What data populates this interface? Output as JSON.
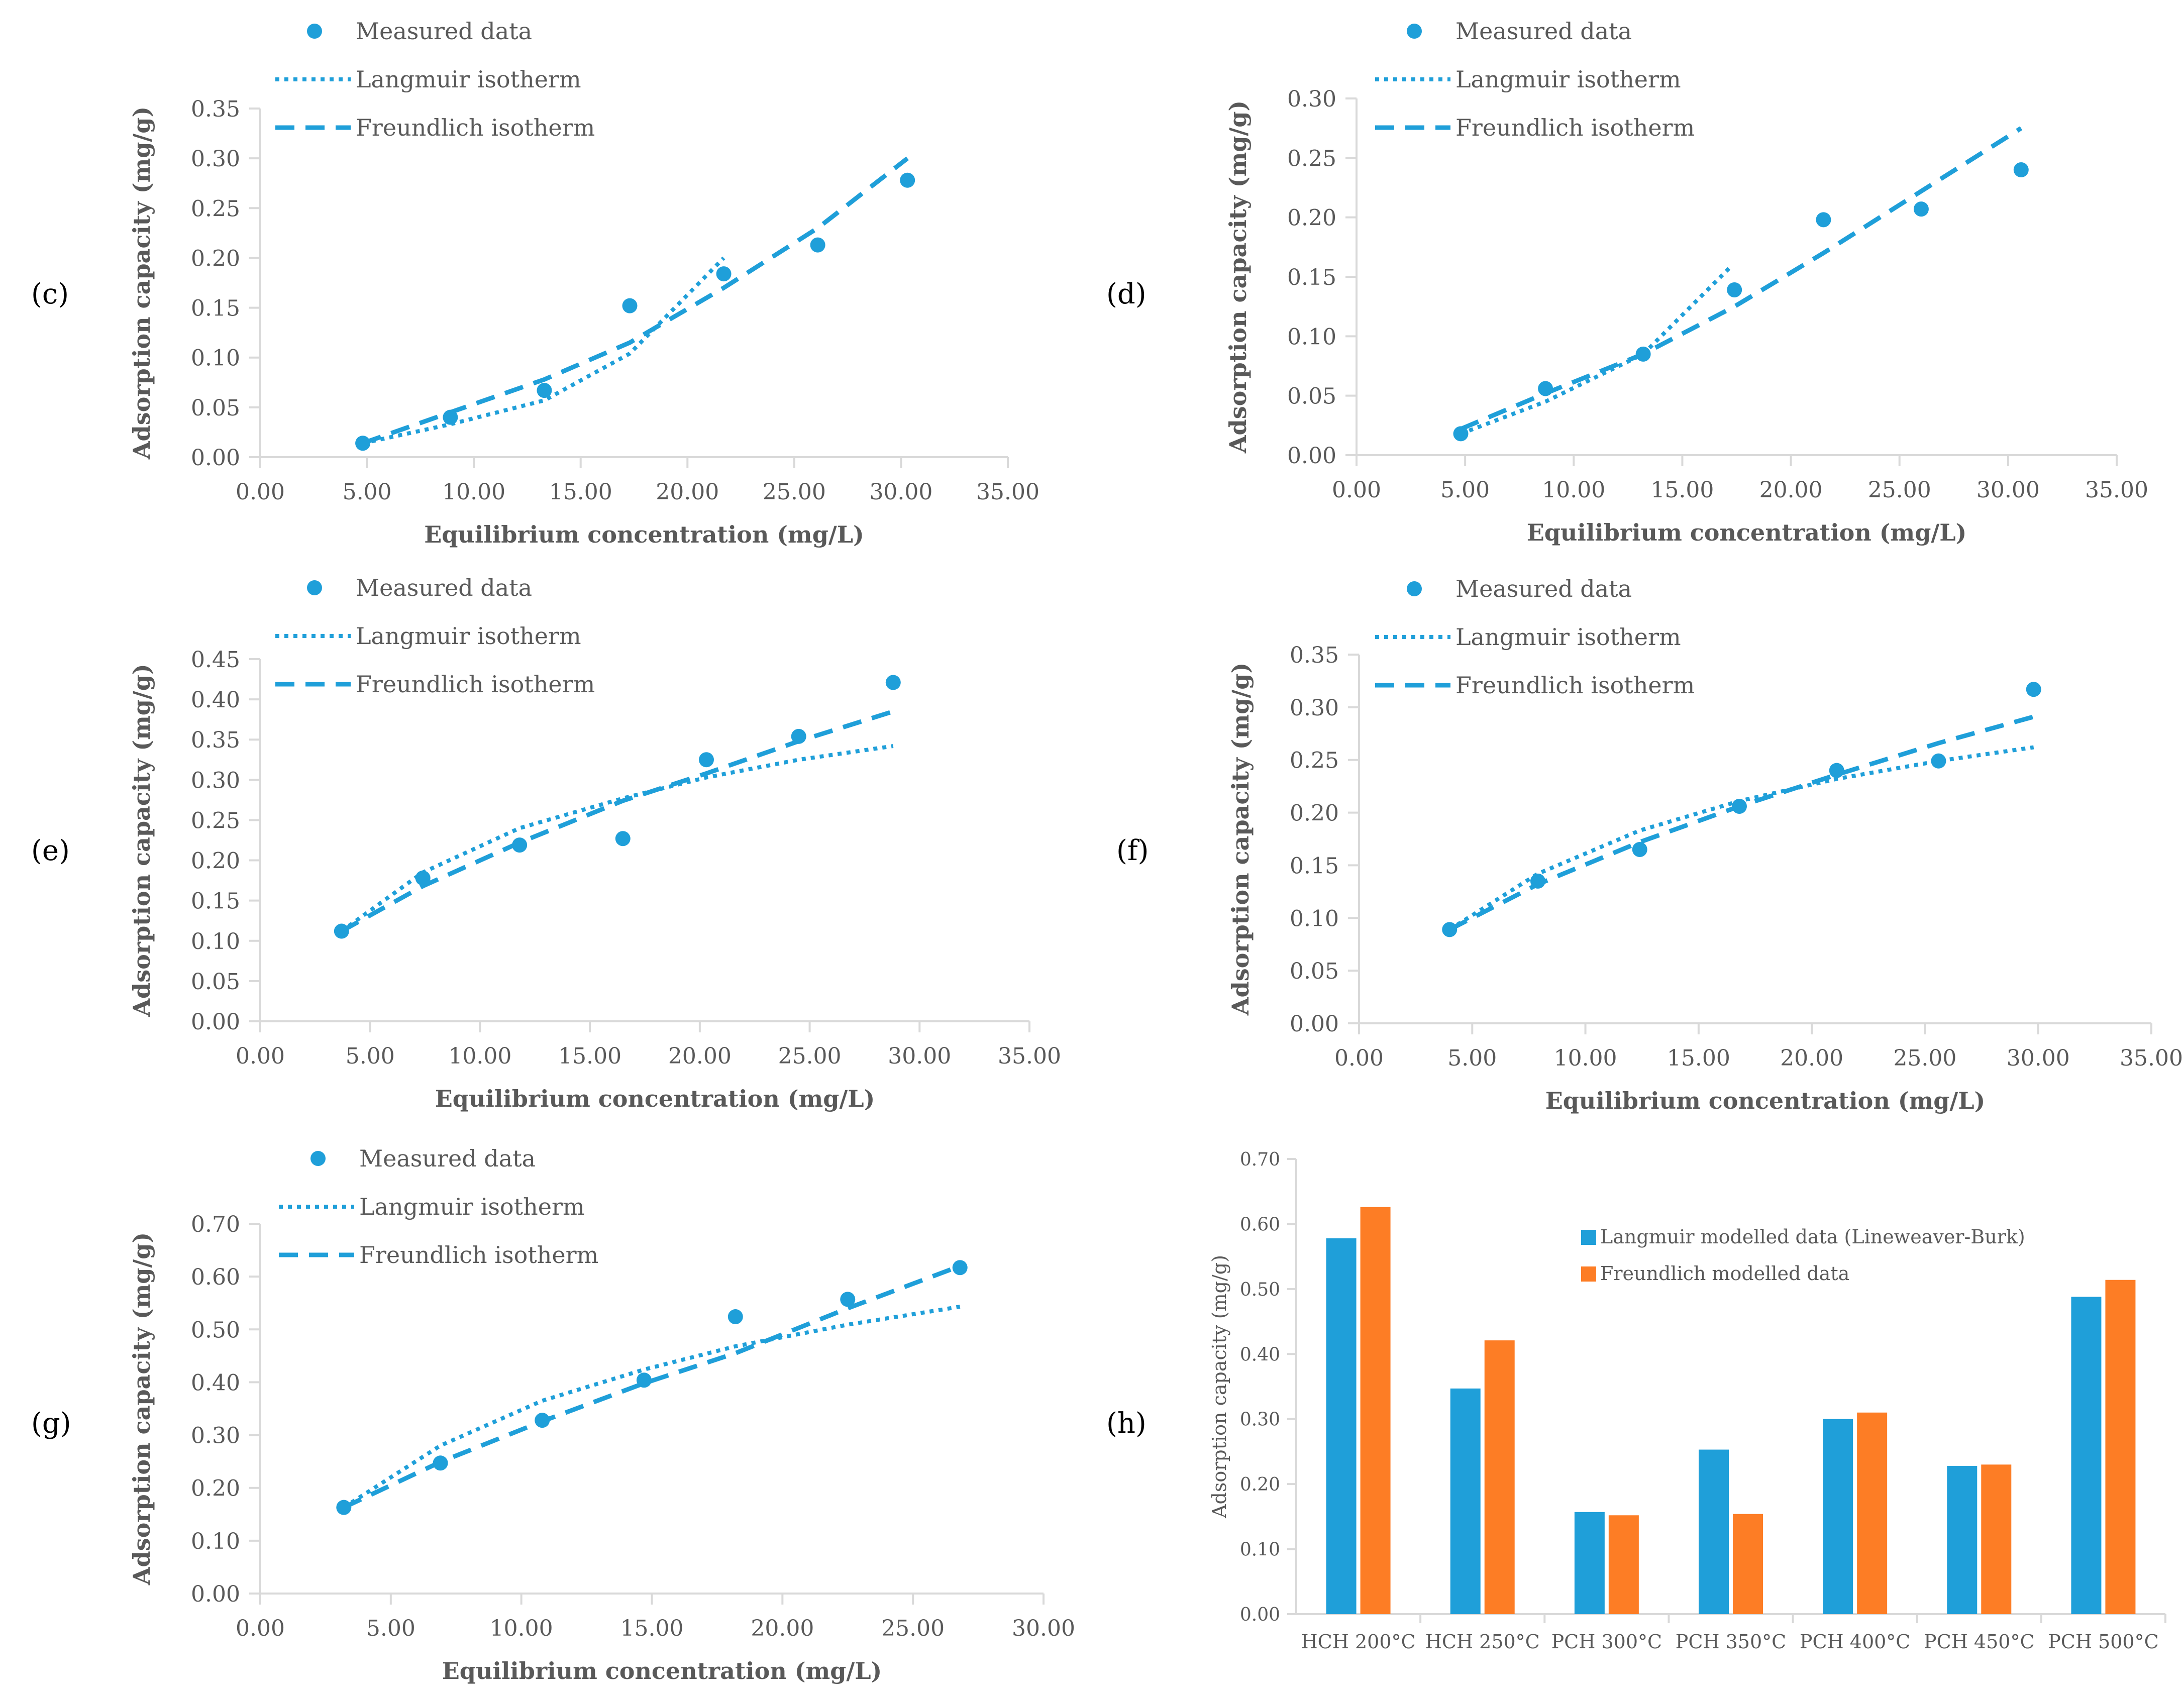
{
  "figure": {
    "accent": "#1f9fd9",
    "secondary": "#fd7d25",
    "axis_color": "#d9d9d9",
    "text_color": "#595959"
  },
  "chart_data": [
    {
      "type": "scatter",
      "panel_label": "(c)",
      "xlabel": "Equilibrium concentration (mg/L)",
      "ylabel": "Adsorption capacity  (mg/g)",
      "xlim": [
        0,
        35
      ],
      "ylim": [
        0,
        0.35
      ],
      "x_ticks": [
        "0.00",
        "5.00",
        "10.00",
        "15.00",
        "20.00",
        "25.00",
        "30.00",
        "35.00"
      ],
      "y_ticks": [
        "0.00",
        "0.05",
        "0.10",
        "0.15",
        "0.20",
        "0.25",
        "0.30",
        "0.35"
      ],
      "legend": [
        "Measured data",
        "Langmuir isotherm",
        "Freundlich isotherm"
      ],
      "measured": {
        "x": [
          4.8,
          8.9,
          13.3,
          17.3,
          21.7,
          26.1,
          30.3
        ],
        "y": [
          0.014,
          0.04,
          0.067,
          0.152,
          0.184,
          0.213,
          0.278
        ]
      },
      "langmuir": {
        "x": [
          4.8,
          8.9,
          13.3,
          17.3,
          21.7
        ],
        "y": [
          0.014,
          0.033,
          0.057,
          0.104,
          0.2
        ]
      },
      "freundlich": {
        "x": [
          4.8,
          8.9,
          13.3,
          17.3,
          21.7,
          26.1,
          30.3
        ],
        "y": [
          0.014,
          0.045,
          0.078,
          0.115,
          0.17,
          0.23,
          0.3
        ]
      }
    },
    {
      "type": "scatter",
      "panel_label": "(d)",
      "xlabel": "Equilibrium concentration (mg/L)",
      "ylabel": "Adsorption capacity  (mg/g)",
      "xlim": [
        0,
        35
      ],
      "ylim": [
        0,
        0.3
      ],
      "x_ticks": [
        "0.00",
        "5.00",
        "10.00",
        "15.00",
        "20.00",
        "25.00",
        "30.00",
        "35.00"
      ],
      "y_ticks": [
        "0.00",
        "0.05",
        "0.10",
        "0.15",
        "0.20",
        "0.25",
        "0.30"
      ],
      "legend": [
        "Measured data",
        "Langmuir isotherm",
        "Freundlich isotherm"
      ],
      "measured": {
        "x": [
          4.8,
          8.7,
          13.2,
          17.4,
          21.5,
          26.0,
          30.6
        ],
        "y": [
          0.018,
          0.056,
          0.085,
          0.139,
          0.198,
          0.207,
          0.24
        ]
      },
      "langmuir": {
        "x": [
          4.8,
          8.7,
          13.2,
          17.2
        ],
        "y": [
          0.018,
          0.045,
          0.085,
          0.158
        ]
      },
      "freundlich": {
        "x": [
          4.8,
          8.7,
          13.2,
          17.4,
          21.5,
          26.0,
          30.6
        ],
        "y": [
          0.022,
          0.052,
          0.085,
          0.125,
          0.17,
          0.222,
          0.275
        ]
      }
    },
    {
      "type": "scatter",
      "panel_label": "(e)",
      "xlabel": "Equilibrium concentration (mg/L)",
      "ylabel": "Adsorption capacity  (mg/g)",
      "xlim": [
        0,
        35
      ],
      "ylim": [
        0,
        0.45
      ],
      "x_ticks": [
        "0.00",
        "5.00",
        "10.00",
        "15.00",
        "20.00",
        "25.00",
        "30.00",
        "35.00"
      ],
      "y_ticks": [
        "0.00",
        "0.05",
        "0.10",
        "0.15",
        "0.20",
        "0.25",
        "0.30",
        "0.35",
        "0.40",
        "0.45"
      ],
      "legend": [
        "Measured data",
        "Langmuir isotherm",
        "Freundlich isotherm"
      ],
      "measured": {
        "x": [
          3.7,
          7.4,
          11.8,
          16.5,
          20.3,
          24.5,
          28.8
        ],
        "y": [
          0.112,
          0.178,
          0.219,
          0.227,
          0.325,
          0.354,
          0.421
        ]
      },
      "langmuir": {
        "x": [
          3.7,
          7.4,
          11.8,
          16.5,
          20.3,
          24.5,
          28.8
        ],
        "y": [
          0.112,
          0.185,
          0.24,
          0.277,
          0.303,
          0.325,
          0.342
        ]
      },
      "freundlich": {
        "x": [
          3.7,
          7.4,
          11.8,
          16.5,
          20.3,
          24.5,
          28.8
        ],
        "y": [
          0.112,
          0.168,
          0.222,
          0.274,
          0.308,
          0.348,
          0.385
        ]
      }
    },
    {
      "type": "scatter",
      "panel_label": "(f)",
      "xlabel": "Equilibrium concentration (mg/L)",
      "ylabel": "Adsorption capacity  (mg/g)",
      "xlim": [
        0,
        35
      ],
      "ylim": [
        0,
        0.35
      ],
      "x_ticks": [
        "0.00",
        "5.00",
        "10.00",
        "15.00",
        "20.00",
        "25.00",
        "30.00",
        "35.00"
      ],
      "y_ticks": [
        "0.00",
        "0.05",
        "0.10",
        "0.15",
        "0.20",
        "0.25",
        "0.30",
        "0.35"
      ],
      "legend": [
        "Measured data",
        "Langmuir isotherm",
        "Freundlich isotherm"
      ],
      "measured": {
        "x": [
          4.0,
          7.9,
          12.4,
          16.8,
          21.1,
          25.6,
          29.8
        ],
        "y": [
          0.089,
          0.135,
          0.165,
          0.206,
          0.24,
          0.249,
          0.317
        ]
      },
      "langmuir": {
        "x": [
          4.0,
          7.9,
          12.4,
          16.8,
          21.1,
          25.6,
          29.8
        ],
        "y": [
          0.089,
          0.142,
          0.183,
          0.211,
          0.232,
          0.249,
          0.262
        ]
      },
      "freundlich": {
        "x": [
          4.0,
          7.9,
          12.4,
          16.8,
          21.1,
          25.6,
          29.8
        ],
        "y": [
          0.089,
          0.132,
          0.172,
          0.206,
          0.236,
          0.266,
          0.291
        ]
      }
    },
    {
      "type": "scatter",
      "panel_label": "(g)",
      "xlabel": "Equilibrium concentration (mg/L)",
      "ylabel": "Adsorption capacity  (mg/g)",
      "xlim": [
        0,
        30
      ],
      "ylim": [
        0,
        0.7
      ],
      "x_ticks": [
        "0.00",
        "5.00",
        "10.00",
        "15.00",
        "20.00",
        "25.00",
        "30.00"
      ],
      "y_ticks": [
        "0.00",
        "0.10",
        "0.20",
        "0.30",
        "0.40",
        "0.50",
        "0.60",
        "0.70"
      ],
      "legend": [
        "Measured data",
        "Langmuir isotherm",
        "Freundlich isotherm"
      ],
      "measured": {
        "x": [
          3.2,
          6.9,
          10.8,
          14.7,
          18.2,
          22.5,
          26.8
        ],
        "y": [
          0.163,
          0.247,
          0.328,
          0.404,
          0.524,
          0.557,
          0.617
        ]
      },
      "langmuir": {
        "x": [
          3.2,
          6.9,
          10.8,
          14.7,
          18.2,
          22.5,
          26.8
        ],
        "y": [
          0.163,
          0.28,
          0.365,
          0.424,
          0.468,
          0.509,
          0.543
        ]
      },
      "freundlich": {
        "x": [
          3.2,
          6.9,
          10.8,
          14.7,
          18.2,
          22.5,
          26.8
        ],
        "y": [
          0.163,
          0.249,
          0.326,
          0.398,
          0.455,
          0.54,
          0.62
        ]
      }
    },
    {
      "type": "bar",
      "panel_label": "(h)",
      "ylabel": "Adsorption  capacity  (mg/g)",
      "ylim": [
        0,
        0.7
      ],
      "y_ticks": [
        "0.00",
        "0.10",
        "0.20",
        "0.30",
        "0.40",
        "0.50",
        "0.60",
        "0.70"
      ],
      "categories": [
        "HCH 200°C",
        "HCH 250°C",
        "PCH 300°C",
        "PCH 350°C",
        "PCH 400°C",
        "PCH 450°C",
        "PCH 500°C"
      ],
      "series": [
        {
          "name": "Langmuir modelled data (Lineweaver-Burk)",
          "values": [
            0.578,
            0.347,
            0.157,
            0.253,
            0.3,
            0.228,
            0.488
          ]
        },
        {
          "name": "Freundlich modelled data",
          "values": [
            0.626,
            0.421,
            0.152,
            0.154,
            0.31,
            0.23,
            0.514
          ]
        }
      ]
    }
  ]
}
